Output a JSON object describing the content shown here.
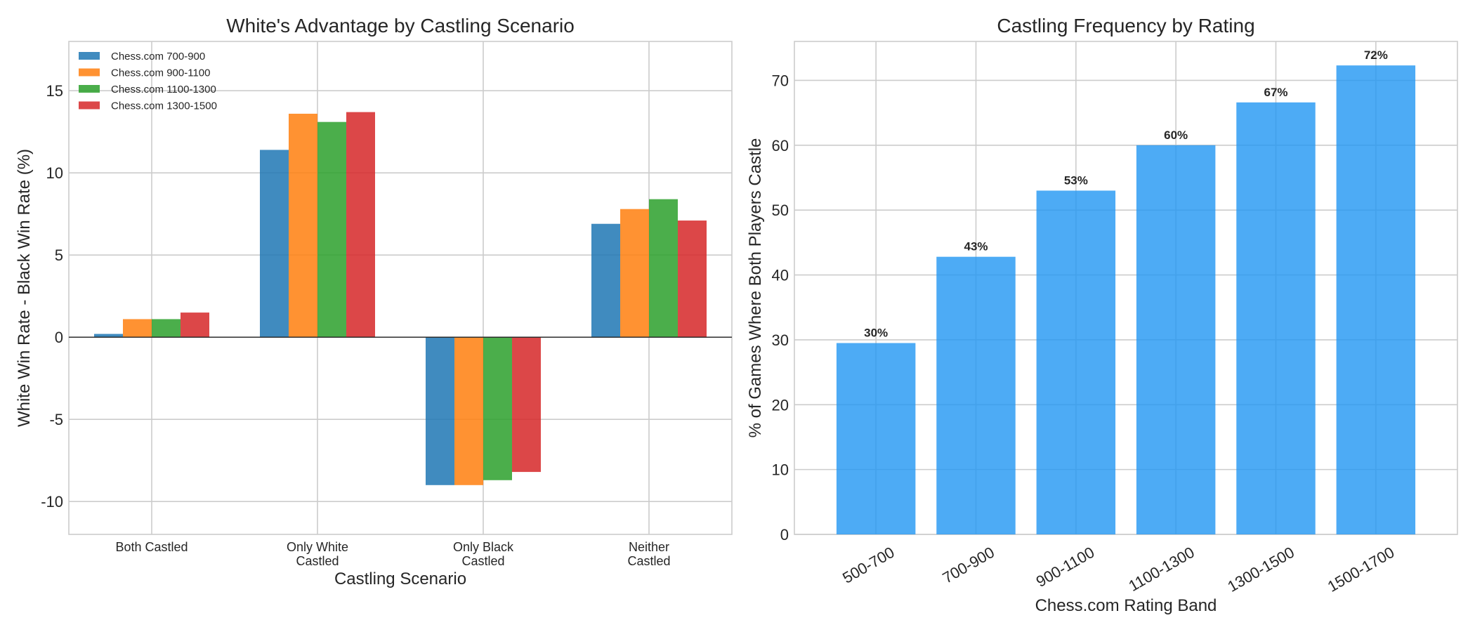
{
  "chart_data": [
    {
      "type": "bar",
      "title": "White's Advantage by Castling Scenario",
      "xlabel": "Castling Scenario",
      "ylabel": "White Win Rate - Black Win Rate (%)",
      "categories": [
        [
          "Both Castled"
        ],
        [
          "Only White",
          "Castled"
        ],
        [
          "Only Black",
          "Castled"
        ],
        [
          "Neither",
          "Castled"
        ]
      ],
      "series": [
        {
          "name": "Chess.com 700-900",
          "color": "#1f77b4",
          "values": [
            0.2,
            11.4,
            -9.0,
            6.9
          ]
        },
        {
          "name": "Chess.com 900-1100",
          "color": "#ff7f0e",
          "values": [
            1.1,
            13.6,
            -9.0,
            7.8
          ]
        },
        {
          "name": "Chess.com 1100-1300",
          "color": "#2ca02c",
          "values": [
            1.1,
            13.1,
            -8.7,
            8.4
          ]
        },
        {
          "name": "Chess.com 1300-1500",
          "color": "#d62728",
          "values": [
            1.5,
            13.7,
            -8.2,
            7.1
          ]
        }
      ],
      "ylim": [
        -12,
        18
      ],
      "yticks": [
        -10,
        -5,
        0,
        5,
        10,
        15
      ],
      "ytick_labels": [
        "-10",
        "-5",
        "0",
        "5",
        "10",
        "15"
      ],
      "grid": true,
      "legend": "top-left"
    },
    {
      "type": "bar",
      "title": "Castling Frequency by Rating",
      "xlabel": "Chess.com Rating Band",
      "ylabel": "% of Games Where Both Players Castle",
      "categories": [
        "500-700",
        "700-900",
        "900-1100",
        "1100-1300",
        "1300-1500",
        "1500-1700"
      ],
      "values": [
        29.5,
        42.8,
        53.0,
        60.0,
        66.6,
        72.3
      ],
      "data_labels": [
        "30%",
        "43%",
        "53%",
        "60%",
        "67%",
        "72%"
      ],
      "color": "#2196f3",
      "ylim": [
        0,
        76
      ],
      "yticks": [
        0,
        10,
        20,
        30,
        40,
        50,
        60,
        70
      ],
      "ytick_labels": [
        "0",
        "10",
        "20",
        "30",
        "40",
        "50",
        "60",
        "70"
      ],
      "grid": true
    }
  ]
}
